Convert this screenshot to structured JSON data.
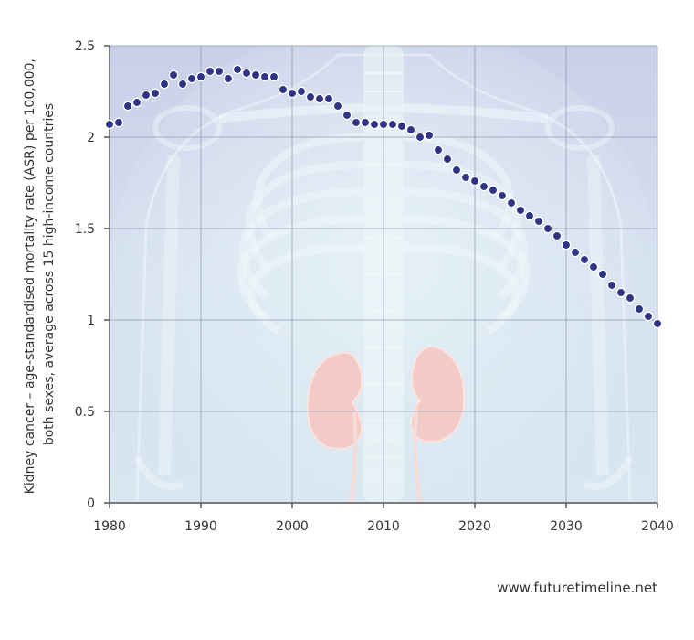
{
  "credit": "www.futuretimeline.net",
  "chart_data": {
    "type": "scatter",
    "title": "",
    "ylabel_lines": [
      "Kidney cancer – age-standardised mortality rate (ASR) per 100,000,",
      "both sexes, average across 15 high-income countries"
    ],
    "xlabel": "",
    "xlim": [
      1980,
      2040
    ],
    "ylim": [
      0,
      2.5
    ],
    "x_ticks": [
      "1980",
      "1990",
      "2000",
      "2010",
      "2020",
      "2030",
      "2040"
    ],
    "y_ticks": [
      "0",
      "0.5",
      "1",
      "1.5",
      "2",
      "2.5"
    ],
    "grid": true,
    "colors": {
      "marker": "#2e3483",
      "marker_edge": "#ffffff",
      "grid": "#8a94a8",
      "axis": "#555555",
      "background": "#cfd6ea",
      "kidney": "#f4c8c2"
    },
    "x": [
      1980,
      1981,
      1982,
      1983,
      1984,
      1985,
      1986,
      1987,
      1988,
      1989,
      1990,
      1991,
      1992,
      1993,
      1994,
      1995,
      1996,
      1997,
      1998,
      1999,
      2000,
      2001,
      2002,
      2003,
      2004,
      2005,
      2006,
      2007,
      2008,
      2009,
      2010,
      2011,
      2012,
      2013,
      2014,
      2015,
      2016,
      2017,
      2018,
      2019,
      2020,
      2021,
      2022,
      2023,
      2024,
      2025,
      2026,
      2027,
      2028,
      2029,
      2030,
      2031,
      2032,
      2033,
      2034,
      2035,
      2036,
      2037,
      2038,
      2039,
      2040
    ],
    "y": [
      2.07,
      2.08,
      2.17,
      2.19,
      2.23,
      2.24,
      2.29,
      2.34,
      2.29,
      2.32,
      2.33,
      2.36,
      2.36,
      2.32,
      2.37,
      2.35,
      2.34,
      2.33,
      2.33,
      2.26,
      2.24,
      2.25,
      2.22,
      2.21,
      2.21,
      2.17,
      2.12,
      2.08,
      2.08,
      2.07,
      2.07,
      2.07,
      2.06,
      2.04,
      2.0,
      2.01,
      1.93,
      1.88,
      1.82,
      1.78,
      1.76,
      1.73,
      1.71,
      1.68,
      1.64,
      1.6,
      1.57,
      1.54,
      1.5,
      1.46,
      1.41,
      1.37,
      1.33,
      1.29,
      1.25,
      1.19,
      1.15,
      1.12,
      1.06,
      1.02,
      0.98
    ]
  }
}
